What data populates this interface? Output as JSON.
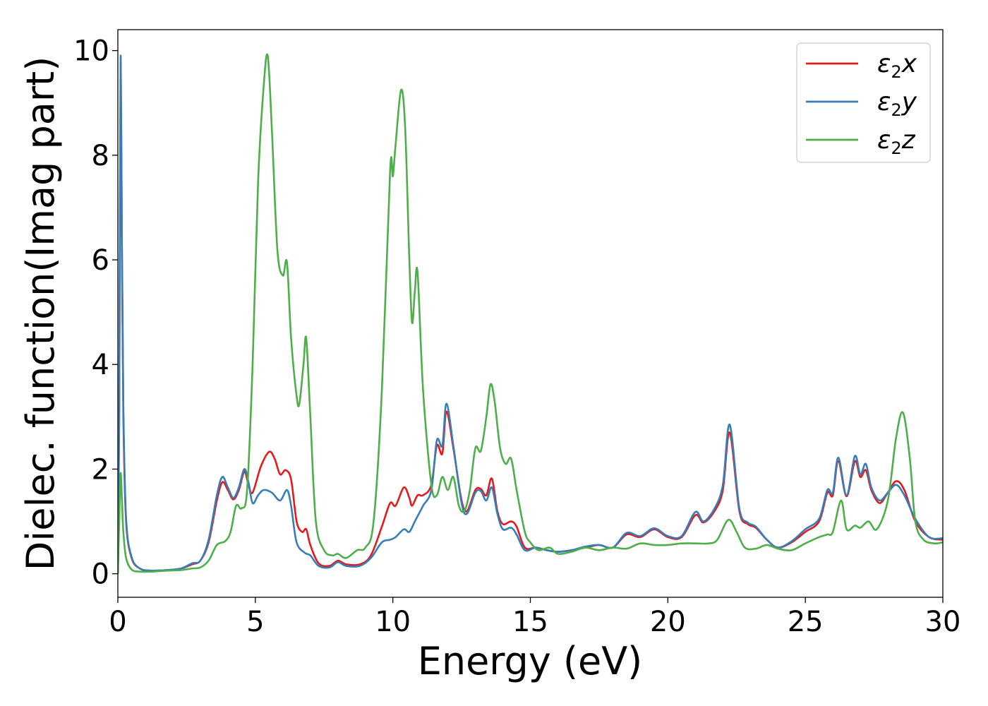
{
  "chart_data": {
    "type": "line",
    "xlabel": "Energy (eV)",
    "ylabel": "Dielec. function(Imag part)",
    "xlim": [
      0,
      30
    ],
    "ylim": [
      -0.45,
      10.4
    ],
    "xticks": [
      "0",
      "5",
      "10",
      "15",
      "20",
      "25",
      "30"
    ],
    "yticks": [
      "0",
      "2",
      "4",
      "6",
      "8",
      "10"
    ],
    "grid": false,
    "legend_position": "top-right",
    "series": [
      {
        "name": "ε2x",
        "legend_symbol": "ε",
        "legend_sub": "2",
        "legend_var": "x",
        "color": "#e41a1c",
        "points": [
          [
            0,
            0
          ],
          [
            0.05,
            3
          ],
          [
            0.1,
            9.7
          ],
          [
            0.15,
            6
          ],
          [
            0.2,
            3
          ],
          [
            0.3,
            1
          ],
          [
            0.5,
            0.3
          ],
          [
            0.8,
            0.1
          ],
          [
            1.2,
            0.06
          ],
          [
            1.8,
            0.07
          ],
          [
            2.3,
            0.1
          ],
          [
            2.7,
            0.18
          ],
          [
            3.0,
            0.25
          ],
          [
            3.3,
            0.6
          ],
          [
            3.6,
            1.4
          ],
          [
            3.8,
            1.75
          ],
          [
            4.0,
            1.6
          ],
          [
            4.2,
            1.42
          ],
          [
            4.4,
            1.6
          ],
          [
            4.6,
            1.95
          ],
          [
            4.75,
            1.7
          ],
          [
            4.9,
            1.55
          ],
          [
            5.2,
            2.05
          ],
          [
            5.5,
            2.33
          ],
          [
            5.7,
            2.2
          ],
          [
            5.9,
            1.9
          ],
          [
            6.1,
            1.98
          ],
          [
            6.3,
            1.8
          ],
          [
            6.5,
            1.0
          ],
          [
            6.7,
            0.8
          ],
          [
            6.85,
            0.85
          ],
          [
            7.0,
            0.55
          ],
          [
            7.3,
            0.2
          ],
          [
            7.7,
            0.15
          ],
          [
            8.0,
            0.25
          ],
          [
            8.3,
            0.18
          ],
          [
            8.8,
            0.18
          ],
          [
            9.2,
            0.35
          ],
          [
            9.6,
            0.9
          ],
          [
            9.9,
            1.35
          ],
          [
            10.1,
            1.3
          ],
          [
            10.4,
            1.65
          ],
          [
            10.6,
            1.45
          ],
          [
            10.7,
            1.3
          ],
          [
            10.9,
            1.5
          ],
          [
            11.1,
            1.5
          ],
          [
            11.4,
            1.7
          ],
          [
            11.6,
            2.45
          ],
          [
            11.8,
            2.3
          ],
          [
            11.95,
            3.1
          ],
          [
            12.2,
            2.4
          ],
          [
            12.5,
            1.4
          ],
          [
            12.7,
            1.2
          ],
          [
            13.0,
            1.6
          ],
          [
            13.2,
            1.62
          ],
          [
            13.4,
            1.5
          ],
          [
            13.6,
            1.82
          ],
          [
            13.8,
            1.2
          ],
          [
            14.0,
            0.95
          ],
          [
            14.3,
            1.0
          ],
          [
            14.5,
            0.9
          ],
          [
            14.8,
            0.5
          ],
          [
            15.2,
            0.5
          ],
          [
            15.6,
            0.45
          ],
          [
            16.0,
            0.42
          ],
          [
            16.5,
            0.45
          ],
          [
            17.0,
            0.5
          ],
          [
            17.5,
            0.55
          ],
          [
            18.0,
            0.5
          ],
          [
            18.5,
            0.75
          ],
          [
            19.0,
            0.7
          ],
          [
            19.5,
            0.85
          ],
          [
            20.0,
            0.7
          ],
          [
            20.5,
            0.7
          ],
          [
            21.0,
            1.12
          ],
          [
            21.3,
            0.98
          ],
          [
            21.7,
            1.2
          ],
          [
            22.0,
            1.6
          ],
          [
            22.25,
            2.7
          ],
          [
            22.6,
            1.2
          ],
          [
            22.9,
            0.95
          ],
          [
            23.2,
            0.88
          ],
          [
            23.6,
            0.65
          ],
          [
            24.0,
            0.5
          ],
          [
            24.5,
            0.6
          ],
          [
            25.0,
            0.8
          ],
          [
            25.5,
            1.0
          ],
          [
            25.8,
            1.55
          ],
          [
            26.0,
            1.5
          ],
          [
            26.2,
            2.15
          ],
          [
            26.5,
            1.48
          ],
          [
            26.8,
            2.15
          ],
          [
            27.0,
            1.85
          ],
          [
            27.2,
            1.98
          ],
          [
            27.4,
            1.6
          ],
          [
            27.7,
            1.35
          ],
          [
            28.0,
            1.55
          ],
          [
            28.3,
            1.77
          ],
          [
            28.6,
            1.6
          ],
          [
            29.0,
            1.0
          ],
          [
            29.5,
            0.7
          ],
          [
            30,
            0.65
          ]
        ]
      },
      {
        "name": "ε2y",
        "legend_symbol": "ε",
        "legend_sub": "2",
        "legend_var": "y",
        "color": "#377eb8",
        "points": [
          [
            0,
            0
          ],
          [
            0.05,
            3.2
          ],
          [
            0.1,
            9.85
          ],
          [
            0.15,
            6.2
          ],
          [
            0.2,
            3.2
          ],
          [
            0.3,
            1.05
          ],
          [
            0.5,
            0.32
          ],
          [
            0.8,
            0.1
          ],
          [
            1.2,
            0.06
          ],
          [
            1.8,
            0.07
          ],
          [
            2.3,
            0.1
          ],
          [
            2.7,
            0.2
          ],
          [
            3.0,
            0.25
          ],
          [
            3.3,
            0.65
          ],
          [
            3.6,
            1.5
          ],
          [
            3.8,
            1.85
          ],
          [
            4.0,
            1.65
          ],
          [
            4.2,
            1.45
          ],
          [
            4.4,
            1.65
          ],
          [
            4.6,
            2.0
          ],
          [
            4.75,
            1.75
          ],
          [
            4.9,
            1.35
          ],
          [
            5.1,
            1.5
          ],
          [
            5.3,
            1.6
          ],
          [
            5.6,
            1.55
          ],
          [
            5.9,
            1.4
          ],
          [
            6.15,
            1.6
          ],
          [
            6.3,
            1.3
          ],
          [
            6.5,
            0.6
          ],
          [
            6.8,
            0.4
          ],
          [
            7.0,
            0.35
          ],
          [
            7.3,
            0.15
          ],
          [
            7.7,
            0.12
          ],
          [
            8.0,
            0.22
          ],
          [
            8.3,
            0.15
          ],
          [
            8.8,
            0.15
          ],
          [
            9.2,
            0.3
          ],
          [
            9.6,
            0.6
          ],
          [
            9.9,
            0.65
          ],
          [
            10.1,
            0.7
          ],
          [
            10.4,
            0.85
          ],
          [
            10.6,
            0.8
          ],
          [
            10.8,
            1.0
          ],
          [
            11.1,
            1.3
          ],
          [
            11.4,
            1.6
          ],
          [
            11.6,
            2.55
          ],
          [
            11.8,
            2.45
          ],
          [
            11.95,
            3.25
          ],
          [
            12.2,
            2.45
          ],
          [
            12.5,
            1.35
          ],
          [
            12.7,
            1.15
          ],
          [
            13.0,
            1.55
          ],
          [
            13.2,
            1.58
          ],
          [
            13.4,
            1.4
          ],
          [
            13.6,
            1.65
          ],
          [
            13.8,
            1.15
          ],
          [
            14.0,
            0.85
          ],
          [
            14.3,
            0.88
          ],
          [
            14.5,
            0.75
          ],
          [
            14.8,
            0.45
          ],
          [
            15.2,
            0.5
          ],
          [
            15.6,
            0.45
          ],
          [
            16.0,
            0.42
          ],
          [
            16.5,
            0.45
          ],
          [
            17.0,
            0.52
          ],
          [
            17.5,
            0.55
          ],
          [
            18.0,
            0.5
          ],
          [
            18.5,
            0.78
          ],
          [
            19.0,
            0.72
          ],
          [
            19.5,
            0.87
          ],
          [
            20.0,
            0.72
          ],
          [
            20.5,
            0.72
          ],
          [
            21.0,
            1.18
          ],
          [
            21.3,
            1.0
          ],
          [
            21.7,
            1.25
          ],
          [
            22.0,
            1.7
          ],
          [
            22.25,
            2.85
          ],
          [
            22.6,
            1.25
          ],
          [
            22.9,
            0.98
          ],
          [
            23.2,
            0.9
          ],
          [
            23.6,
            0.65
          ],
          [
            24.0,
            0.5
          ],
          [
            24.5,
            0.62
          ],
          [
            25.0,
            0.85
          ],
          [
            25.5,
            1.05
          ],
          [
            25.8,
            1.6
          ],
          [
            26.0,
            1.55
          ],
          [
            26.2,
            2.22
          ],
          [
            26.5,
            1.5
          ],
          [
            26.8,
            2.25
          ],
          [
            27.0,
            1.9
          ],
          [
            27.2,
            2.1
          ],
          [
            27.4,
            1.65
          ],
          [
            27.7,
            1.4
          ],
          [
            28.0,
            1.55
          ],
          [
            28.3,
            1.7
          ],
          [
            28.6,
            1.5
          ],
          [
            29.0,
            1.05
          ],
          [
            29.5,
            0.7
          ],
          [
            30,
            0.68
          ]
        ]
      },
      {
        "name": "ε2z",
        "legend_symbol": "ε",
        "legend_sub": "2",
        "legend_var": "z",
        "color": "#4daf4a",
        "points": [
          [
            0,
            0
          ],
          [
            0.05,
            1.0
          ],
          [
            0.1,
            1.92
          ],
          [
            0.15,
            1.4
          ],
          [
            0.2,
            0.8
          ],
          [
            0.3,
            0.3
          ],
          [
            0.5,
            0.08
          ],
          [
            0.8,
            0.04
          ],
          [
            1.2,
            0.04
          ],
          [
            1.8,
            0.06
          ],
          [
            2.3,
            0.07
          ],
          [
            2.7,
            0.1
          ],
          [
            3.0,
            0.12
          ],
          [
            3.3,
            0.25
          ],
          [
            3.6,
            0.55
          ],
          [
            3.9,
            0.62
          ],
          [
            4.1,
            0.8
          ],
          [
            4.3,
            1.3
          ],
          [
            4.5,
            1.25
          ],
          [
            4.7,
            1.6
          ],
          [
            4.9,
            4.0
          ],
          [
            5.1,
            7.5
          ],
          [
            5.3,
            9.3
          ],
          [
            5.45,
            9.9
          ],
          [
            5.6,
            8.5
          ],
          [
            5.8,
            6.2
          ],
          [
            6.0,
            5.7
          ],
          [
            6.15,
            5.95
          ],
          [
            6.3,
            4.5
          ],
          [
            6.5,
            3.4
          ],
          [
            6.6,
            3.25
          ],
          [
            6.75,
            4.0
          ],
          [
            6.85,
            4.5
          ],
          [
            7.0,
            3.0
          ],
          [
            7.2,
            1.0
          ],
          [
            7.5,
            0.45
          ],
          [
            7.8,
            0.35
          ],
          [
            8.0,
            0.38
          ],
          [
            8.3,
            0.3
          ],
          [
            8.7,
            0.45
          ],
          [
            9.0,
            0.5
          ],
          [
            9.3,
            1.0
          ],
          [
            9.6,
            3.5
          ],
          [
            9.9,
            7.7
          ],
          [
            10.0,
            7.6
          ],
          [
            10.1,
            8.2
          ],
          [
            10.3,
            9.25
          ],
          [
            10.45,
            8.5
          ],
          [
            10.6,
            6.0
          ],
          [
            10.7,
            4.8
          ],
          [
            10.8,
            5.4
          ],
          [
            10.9,
            5.75
          ],
          [
            11.1,
            3.5
          ],
          [
            11.4,
            1.7
          ],
          [
            11.6,
            1.5
          ],
          [
            11.8,
            1.85
          ],
          [
            12.0,
            1.6
          ],
          [
            12.2,
            1.85
          ],
          [
            12.4,
            1.3
          ],
          [
            12.6,
            1.2
          ],
          [
            12.8,
            1.6
          ],
          [
            13.0,
            2.4
          ],
          [
            13.2,
            2.35
          ],
          [
            13.4,
            3.0
          ],
          [
            13.55,
            3.62
          ],
          [
            13.7,
            3.3
          ],
          [
            13.9,
            2.4
          ],
          [
            14.1,
            2.1
          ],
          [
            14.3,
            2.2
          ],
          [
            14.5,
            1.6
          ],
          [
            14.8,
            0.8
          ],
          [
            15.0,
            0.6
          ],
          [
            15.3,
            0.45
          ],
          [
            15.7,
            0.5
          ],
          [
            16.0,
            0.38
          ],
          [
            16.5,
            0.42
          ],
          [
            17.0,
            0.5
          ],
          [
            17.5,
            0.45
          ],
          [
            18.0,
            0.5
          ],
          [
            18.5,
            0.48
          ],
          [
            19.0,
            0.58
          ],
          [
            19.5,
            0.55
          ],
          [
            20.0,
            0.55
          ],
          [
            20.5,
            0.58
          ],
          [
            21.0,
            0.58
          ],
          [
            21.5,
            0.58
          ],
          [
            21.8,
            0.65
          ],
          [
            22.2,
            1.03
          ],
          [
            22.5,
            0.8
          ],
          [
            22.8,
            0.5
          ],
          [
            23.2,
            0.48
          ],
          [
            23.6,
            0.55
          ],
          [
            24.0,
            0.48
          ],
          [
            24.5,
            0.45
          ],
          [
            25.0,
            0.58
          ],
          [
            25.5,
            0.7
          ],
          [
            25.8,
            0.75
          ],
          [
            26.0,
            0.8
          ],
          [
            26.3,
            1.4
          ],
          [
            26.5,
            0.85
          ],
          [
            26.8,
            0.92
          ],
          [
            27.0,
            0.88
          ],
          [
            27.3,
            1.0
          ],
          [
            27.6,
            0.85
          ],
          [
            28.0,
            1.4
          ],
          [
            28.3,
            2.6
          ],
          [
            28.55,
            3.08
          ],
          [
            28.8,
            2.2
          ],
          [
            29.0,
            1.0
          ],
          [
            29.3,
            0.65
          ],
          [
            29.7,
            0.58
          ],
          [
            30,
            0.6
          ]
        ]
      }
    ]
  }
}
